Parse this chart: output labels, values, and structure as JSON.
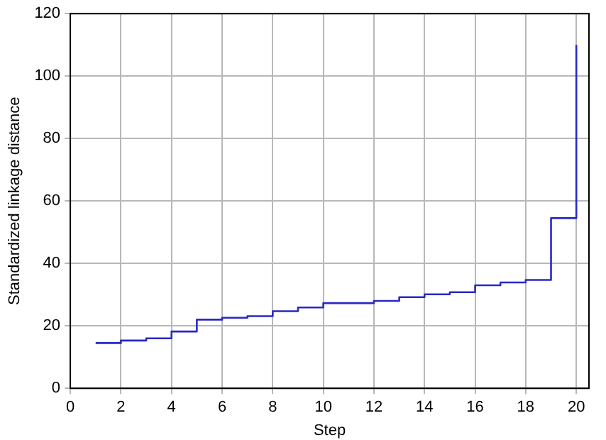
{
  "chart_data": {
    "type": "step",
    "xlabel": "Step",
    "ylabel": "Standardized linkage distance",
    "x": [
      1,
      2,
      3,
      4,
      5,
      6,
      7,
      8,
      9,
      10,
      11,
      12,
      13,
      14,
      15,
      16,
      17,
      18,
      19,
      20
    ],
    "series": [
      {
        "color": "#2828c8",
        "values": [
          14.5,
          15.3,
          16,
          18.2,
          22,
          22.6,
          23.1,
          24.7,
          25.9,
          27.3,
          27.3,
          28,
          29.2,
          30.1,
          30.8,
          33,
          33.9,
          34.7,
          54.5,
          110
        ]
      }
    ],
    "xlim": [
      0,
      20.5
    ],
    "xticks": [
      0,
      2,
      4,
      6,
      8,
      10,
      12,
      14,
      16,
      18,
      20
    ],
    "ylim": [
      0,
      120
    ],
    "yticks": [
      0,
      20,
      40,
      60,
      80,
      100,
      120
    ],
    "grid": true,
    "legend": false
  }
}
